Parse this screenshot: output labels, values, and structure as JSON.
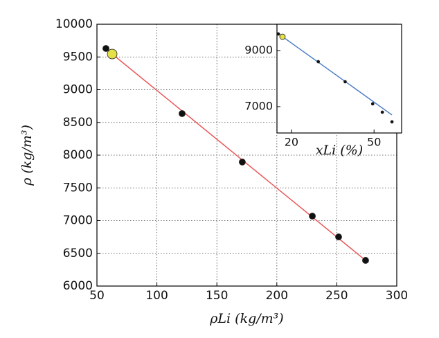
{
  "chart_data": [
    {
      "type": "scatter",
      "x_label": "ρLi (kg/m³)",
      "y_label": "ρ (kg/m³)",
      "xlim": [
        50,
        300
      ],
      "ylim": [
        6000,
        10000
      ],
      "xticks": [
        50,
        100,
        150,
        200,
        250,
        300
      ],
      "yticks": [
        6000,
        6500,
        7000,
        7500,
        8000,
        8500,
        9000,
        9500,
        10000
      ],
      "grid": true,
      "series": [
        {
          "color": "#111111",
          "x": [
            57.5,
            121,
            171.2,
            229.6,
            251.5,
            274
          ],
          "values": [
            9630,
            8635,
            7895,
            7069,
            6751,
            6392
          ]
        },
        {
          "color": "#e3e04a",
          "x": [
            62.7
          ],
          "values": [
            9545
          ]
        }
      ],
      "fit": {
        "color": "#e8585a",
        "x": [
          62.7,
          274
        ],
        "values": [
          9545,
          6392
        ]
      }
    },
    {
      "type": "scatter",
      "x_label": "xLi (%)",
      "xlim": [
        14.75,
        60
      ],
      "ylim": [
        6060,
        9940
      ],
      "xticks": [
        20,
        50
      ],
      "yticks": [
        7000,
        9000
      ],
      "grid": false,
      "series": [
        {
          "color": "#111111",
          "x": [
            15.25,
            29.75,
            39.5,
            49.5,
            53,
            56.5
          ],
          "values": [
            9593,
            8605,
            7889,
            7099,
            6802,
            6457
          ]
        },
        {
          "color": "#e3e04a",
          "x": [
            16.75
          ],
          "values": [
            9494
          ]
        }
      ],
      "fit": {
        "color": "#4a7cc4",
        "x": [
          15.75,
          56.5
        ],
        "values": [
          9568,
          6704
        ]
      }
    }
  ]
}
